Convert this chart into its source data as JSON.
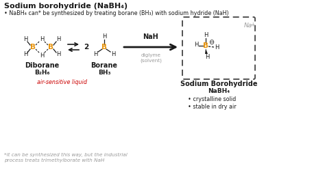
{
  "bg_color": "#ffffff",
  "title": "Sodium borohydride (NaBH₄)",
  "subtitle": "• NaBH₄ can* be synthesized by treating borane (BH₃) with sodium hydride (NaH)",
  "orange": "#e8930a",
  "red": "#cc0000",
  "gray": "#888888",
  "lightgray": "#999999",
  "dark": "#1a1a1a",
  "footnote_line1": "*it can be synthesized this way, but the industrial",
  "footnote_line2": "process treats trimethylborate with NaH",
  "label_diborane": "Diborane",
  "label_borane": "Borane",
  "label_nabh4": "Sodium Borohydride",
  "formula_diborane": "B₂H₆",
  "formula_borane": "BH₃",
  "formula_nabh4": "NaBH₄",
  "air_sensitive": "air-sensitive liquid",
  "nabh4_props": [
    "crystalline solid",
    "stable in dry air"
  ],
  "nah_label": "NaH",
  "solvent_label": "diglyme\n(solvent)"
}
